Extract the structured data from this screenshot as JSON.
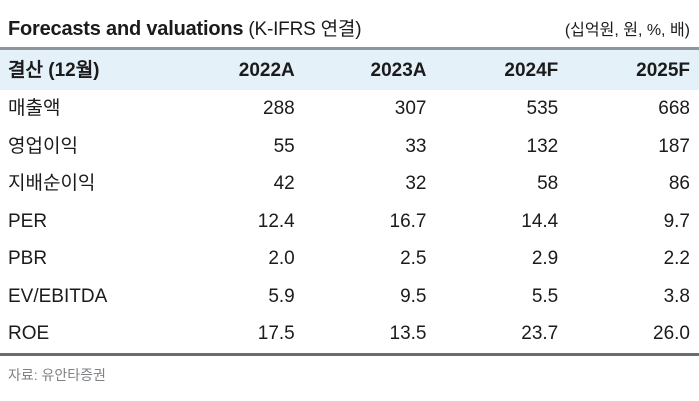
{
  "title": {
    "main": "Forecasts and valuations",
    "suffix": " (K-IFRS 연결)",
    "units": "(십억원, 원, %, 배)"
  },
  "table": {
    "header": {
      "label": "결산 (12월)",
      "columns": [
        "2022A",
        "2023A",
        "2024F",
        "2025F"
      ]
    },
    "rows": [
      {
        "label": "매출액",
        "values": [
          "288",
          "307",
          "535",
          "668"
        ]
      },
      {
        "label": "영업이익",
        "values": [
          "55",
          "33",
          "132",
          "187"
        ]
      },
      {
        "label": "지배순이익",
        "values": [
          "42",
          "32",
          "58",
          "86"
        ]
      },
      {
        "label": "PER",
        "values": [
          "12.4",
          "16.7",
          "14.4",
          "9.7"
        ]
      },
      {
        "label": "PBR",
        "values": [
          "2.0",
          "2.5",
          "2.9",
          "2.2"
        ]
      },
      {
        "label": "EV/EBITDA",
        "values": [
          "5.9",
          "9.5",
          "5.5",
          "3.8"
        ]
      },
      {
        "label": "ROE",
        "values": [
          "17.5",
          "13.5",
          "23.7",
          "26.0"
        ]
      }
    ]
  },
  "footer": {
    "source": "자료: 유안타증권"
  },
  "colors": {
    "header_bg": "#e5f1f9",
    "top_border": "#8e969d",
    "bottom_border": "#686d70",
    "text": "#1b1b1b",
    "muted_text": "#7f8285"
  }
}
